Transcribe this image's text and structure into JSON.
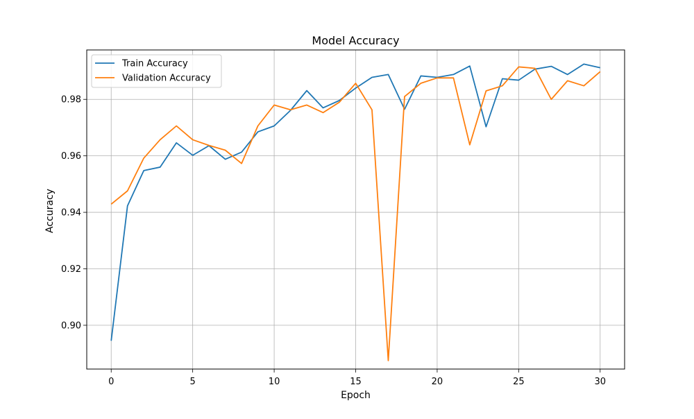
{
  "chart_data": {
    "type": "line",
    "title": "Model Accuracy",
    "xlabel": "Epoch",
    "ylabel": "Accuracy",
    "xlim": [
      -1.5,
      31.5
    ],
    "ylim": [
      0.8845,
      0.9975
    ],
    "x_ticks": [
      0,
      5,
      10,
      15,
      20,
      25,
      30
    ],
    "y_ticks": [
      0.9,
      0.92,
      0.94,
      0.96,
      0.98
    ],
    "y_tick_labels": [
      "0.90",
      "0.92",
      "0.94",
      "0.96",
      "0.98"
    ],
    "grid": true,
    "legend_position": "upper-left",
    "x": [
      0,
      1,
      2,
      3,
      4,
      5,
      6,
      7,
      8,
      9,
      10,
      11,
      12,
      13,
      14,
      15,
      16,
      17,
      18,
      19,
      20,
      21,
      22,
      23,
      24,
      25,
      26,
      27,
      28,
      29,
      30
    ],
    "series": [
      {
        "name": "Train Accuracy",
        "color": "#1f77b4",
        "values": [
          0.8945,
          0.9423,
          0.9548,
          0.956,
          0.9646,
          0.9602,
          0.9636,
          0.9588,
          0.9613,
          0.9685,
          0.9706,
          0.9761,
          0.9831,
          0.977,
          0.9796,
          0.984,
          0.9878,
          0.9888,
          0.9765,
          0.9883,
          0.9878,
          0.9888,
          0.9918,
          0.9703,
          0.9873,
          0.9868,
          0.9907,
          0.9917,
          0.9888,
          0.9925,
          0.9912
        ]
      },
      {
        "name": "Validation Accuracy",
        "color": "#ff7f0e",
        "values": [
          0.9429,
          0.9476,
          0.9592,
          0.9657,
          0.9706,
          0.9657,
          0.9637,
          0.962,
          0.9573,
          0.9706,
          0.978,
          0.9763,
          0.978,
          0.9753,
          0.979,
          0.9857,
          0.9763,
          0.8875,
          0.981,
          0.9857,
          0.9876,
          0.9876,
          0.9639,
          0.983,
          0.9848,
          0.9915,
          0.991,
          0.98,
          0.9866,
          0.9848,
          0.9898
        ]
      }
    ]
  }
}
